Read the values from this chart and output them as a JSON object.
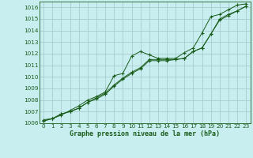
{
  "title": "Graphe pression niveau de la mer (hPa)",
  "bg_color": "#c8eef0",
  "grid_color": "#a8ccd0",
  "line_color": "#1a5c1a",
  "marker_color": "#1a5c1a",
  "xlim": [
    -0.5,
    23.5
  ],
  "ylim": [
    1006.0,
    1016.5
  ],
  "yticks": [
    1006,
    1007,
    1008,
    1009,
    1010,
    1011,
    1012,
    1013,
    1014,
    1015,
    1016
  ],
  "xticks": [
    0,
    1,
    2,
    3,
    4,
    5,
    6,
    7,
    8,
    9,
    10,
    11,
    12,
    13,
    14,
    15,
    16,
    17,
    18,
    19,
    20,
    21,
    22,
    23
  ],
  "series": [
    [
      1006.3,
      1006.4,
      1006.7,
      1007.1,
      1007.5,
      1008.0,
      1008.3,
      1008.7,
      1010.1,
      1010.3,
      1011.8,
      1012.2,
      1011.9,
      1011.6,
      1011.6,
      1011.6,
      1012.1,
      1012.5,
      1013.8,
      1015.2,
      1015.4,
      1015.8,
      1016.2,
      1016.3
    ],
    [
      1006.2,
      1006.4,
      1006.8,
      1007.0,
      1007.3,
      1007.8,
      1008.2,
      1008.6,
      1009.3,
      1009.9,
      1010.4,
      1010.8,
      1011.5,
      1011.5,
      1011.5,
      1011.5,
      1011.6,
      1012.2,
      1012.5,
      1013.7,
      1015.0,
      1015.4,
      1015.7,
      1016.1
    ],
    [
      1006.2,
      1006.4,
      1006.8,
      1007.0,
      1007.3,
      1007.8,
      1008.1,
      1008.5,
      1009.2,
      1009.8,
      1010.3,
      1010.7,
      1011.4,
      1011.4,
      1011.4,
      1011.5,
      1011.6,
      1012.2,
      1012.5,
      1013.7,
      1014.9,
      1015.3,
      1015.7,
      1016.1
    ]
  ],
  "title_fontsize": 6.0,
  "tick_fontsize": 5.2
}
